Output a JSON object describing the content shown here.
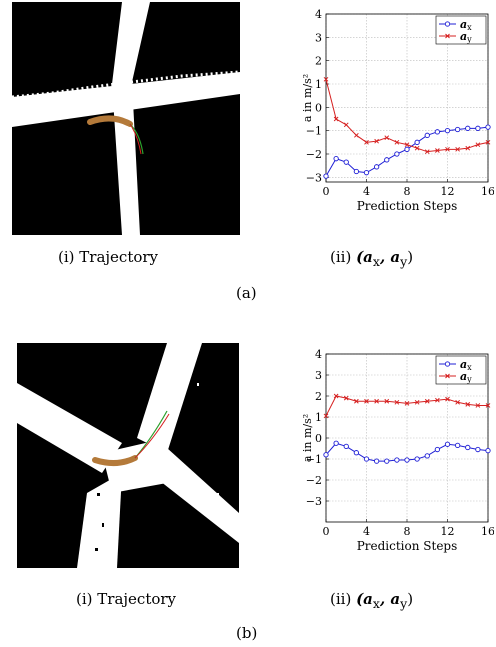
{
  "panels": [
    {
      "label": "(a)",
      "left_caption": "(i) Trajectory",
      "right_caption_prefix": "(ii) ",
      "right_caption_math": "(a",
      "right_caption_sub_x": "x",
      "right_caption_mid": ", a",
      "right_caption_sub_y": "y",
      "right_caption_end": ")"
    },
    {
      "label": "(b)",
      "left_caption": "(i) Trajectory",
      "right_caption_prefix": "(ii) ",
      "right_caption_math": "(a",
      "right_caption_sub_x": "x",
      "right_caption_mid": ", a",
      "right_caption_sub_y": "y",
      "right_caption_end": ")"
    }
  ],
  "colors": {
    "ax": "#1f1fd6",
    "ay": "#d62020",
    "traj": "#b47a3a",
    "pred": "#2ca02c"
  },
  "chart_data": [
    {
      "type": "line",
      "xlabel": "Prediction Steps",
      "ylabel": "a in m/s²",
      "xlim": [
        0,
        16
      ],
      "ylim": [
        -3.2,
        4
      ],
      "xticks": [
        0,
        4,
        8,
        12,
        16
      ],
      "yticks": [
        -3,
        -2,
        -1,
        0,
        1,
        2,
        3,
        4
      ],
      "grid": true,
      "legend": "top-right",
      "series": [
        {
          "name": "a_x",
          "marker": "circle",
          "x": [
            0,
            1,
            2,
            3,
            4,
            5,
            6,
            7,
            8,
            9,
            10,
            11,
            12,
            13,
            14,
            15,
            16
          ],
          "values": [
            -2.95,
            -2.2,
            -2.35,
            -2.75,
            -2.8,
            -2.55,
            -2.25,
            -2.0,
            -1.8,
            -1.5,
            -1.2,
            -1.05,
            -1.0,
            -0.95,
            -0.9,
            -0.9,
            -0.85
          ]
        },
        {
          "name": "a_y",
          "marker": "x",
          "x": [
            0,
            1,
            2,
            3,
            4,
            5,
            6,
            7,
            8,
            9,
            10,
            11,
            12,
            13,
            14,
            15,
            16
          ],
          "values": [
            1.2,
            -0.5,
            -0.75,
            -1.2,
            -1.5,
            -1.45,
            -1.3,
            -1.5,
            -1.6,
            -1.75,
            -1.9,
            -1.85,
            -1.8,
            -1.8,
            -1.75,
            -1.6,
            -1.5
          ]
        }
      ]
    },
    {
      "type": "line",
      "xlabel": "Prediction Steps",
      "ylabel": "a in m/s²",
      "xlim": [
        0,
        16
      ],
      "ylim": [
        -4,
        4
      ],
      "xticks": [
        0,
        4,
        8,
        12,
        16
      ],
      "yticks": [
        -3,
        -2,
        -1,
        0,
        1,
        2,
        3,
        4
      ],
      "grid": true,
      "legend": "top-right",
      "series": [
        {
          "name": "a_x",
          "marker": "circle",
          "x": [
            0,
            1,
            2,
            3,
            4,
            5,
            6,
            7,
            8,
            9,
            10,
            11,
            12,
            13,
            14,
            15,
            16
          ],
          "values": [
            -0.8,
            -0.25,
            -0.4,
            -0.7,
            -1.0,
            -1.1,
            -1.1,
            -1.05,
            -1.05,
            -1.0,
            -0.85,
            -0.55,
            -0.3,
            -0.35,
            -0.45,
            -0.55,
            -0.6
          ]
        },
        {
          "name": "a_y",
          "marker": "x",
          "x": [
            0,
            1,
            2,
            3,
            4,
            5,
            6,
            7,
            8,
            9,
            10,
            11,
            12,
            13,
            14,
            15,
            16
          ],
          "values": [
            1.05,
            2.0,
            1.9,
            1.75,
            1.75,
            1.75,
            1.75,
            1.7,
            1.65,
            1.7,
            1.75,
            1.8,
            1.85,
            1.7,
            1.6,
            1.55,
            1.55
          ]
        }
      ]
    }
  ]
}
